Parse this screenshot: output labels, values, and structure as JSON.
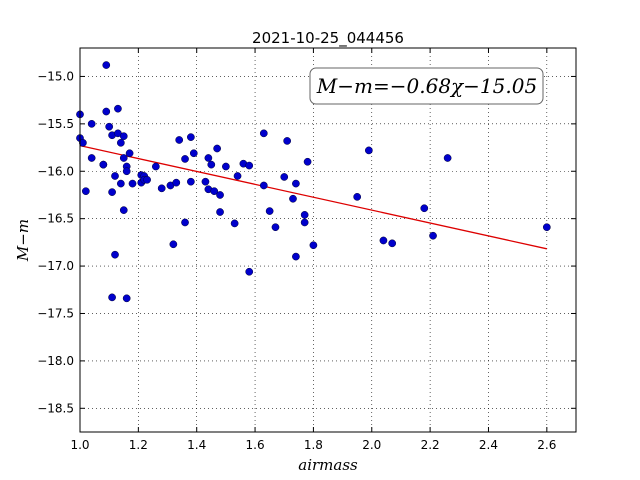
{
  "chart_data": {
    "type": "scatter",
    "title": "2021-10-25_044456",
    "xlabel": "airmass",
    "ylabel": "M−m",
    "xlim": [
      1.0,
      2.7
    ],
    "ylim": [
      -14.7,
      -18.75
    ],
    "y_inverted": true,
    "grid": true,
    "x_ticks": [
      "1.0",
      "1.2",
      "1.4",
      "1.6",
      "1.8",
      "2.0",
      "2.2",
      "2.4",
      "2.6"
    ],
    "y_ticks": [
      "−15.0",
      "−15.5",
      "−16.0",
      "−16.5",
      "−17.0",
      "−17.5",
      "−18.0",
      "−18.5"
    ],
    "annotation": "M−m=−0.68χ−15.05",
    "marker_color": "#0000cc",
    "fit_line_color": "#dd0000",
    "fit": {
      "slope": -0.68,
      "intercept": -15.05,
      "x_range": [
        1.0,
        2.6
      ]
    },
    "points": [
      [
        1.0,
        -15.4
      ],
      [
        1.0,
        -15.65
      ],
      [
        1.01,
        -15.7
      ],
      [
        1.02,
        -16.21
      ],
      [
        1.04,
        -15.5
      ],
      [
        1.04,
        -15.86
      ],
      [
        1.08,
        -15.93
      ],
      [
        1.08,
        -15.93
      ],
      [
        1.09,
        -15.37
      ],
      [
        1.09,
        -14.88
      ],
      [
        1.1,
        -15.53
      ],
      [
        1.11,
        -15.62
      ],
      [
        1.11,
        -16.22
      ],
      [
        1.11,
        -17.33
      ],
      [
        1.12,
        -16.05
      ],
      [
        1.12,
        -16.88
      ],
      [
        1.13,
        -15.34
      ],
      [
        1.13,
        -15.6
      ],
      [
        1.14,
        -15.7
      ],
      [
        1.14,
        -16.13
      ],
      [
        1.15,
        -16.41
      ],
      [
        1.15,
        -15.86
      ],
      [
        1.15,
        -15.63
      ],
      [
        1.16,
        -17.34
      ],
      [
        1.16,
        -15.95
      ],
      [
        1.16,
        -16.0
      ],
      [
        1.17,
        -15.81
      ],
      [
        1.18,
        -16.13
      ],
      [
        1.21,
        -16.12
      ],
      [
        1.21,
        -16.04
      ],
      [
        1.22,
        -16.05
      ],
      [
        1.22,
        -16.09
      ],
      [
        1.23,
        -16.09
      ],
      [
        1.26,
        -15.95
      ],
      [
        1.28,
        -16.18
      ],
      [
        1.31,
        -16.15
      ],
      [
        1.32,
        -16.77
      ],
      [
        1.33,
        -16.12
      ],
      [
        1.34,
        -15.67
      ],
      [
        1.36,
        -16.54
      ],
      [
        1.36,
        -15.87
      ],
      [
        1.38,
        -15.64
      ],
      [
        1.38,
        -16.11
      ],
      [
        1.39,
        -15.81
      ],
      [
        1.43,
        -16.11
      ],
      [
        1.44,
        -16.19
      ],
      [
        1.44,
        -15.86
      ],
      [
        1.45,
        -15.93
      ],
      [
        1.46,
        -16.21
      ],
      [
        1.47,
        -15.76
      ],
      [
        1.48,
        -16.25
      ],
      [
        1.48,
        -16.43
      ],
      [
        1.5,
        -15.95
      ],
      [
        1.53,
        -16.55
      ],
      [
        1.54,
        -16.05
      ],
      [
        1.56,
        -15.92
      ],
      [
        1.58,
        -15.94
      ],
      [
        1.58,
        -17.06
      ],
      [
        1.63,
        -15.6
      ],
      [
        1.63,
        -16.15
      ],
      [
        1.65,
        -16.42
      ],
      [
        1.67,
        -16.59
      ],
      [
        1.7,
        -16.06
      ],
      [
        1.71,
        -15.68
      ],
      [
        1.73,
        -16.29
      ],
      [
        1.74,
        -16.9
      ],
      [
        1.74,
        -16.13
      ],
      [
        1.77,
        -16.54
      ],
      [
        1.77,
        -16.46
      ],
      [
        1.78,
        -15.9
      ],
      [
        1.8,
        -16.78
      ],
      [
        1.95,
        -16.27
      ],
      [
        1.99,
        -15.78
      ],
      [
        2.04,
        -16.73
      ],
      [
        2.07,
        -16.76
      ],
      [
        2.18,
        -16.39
      ],
      [
        2.21,
        -16.68
      ],
      [
        2.26,
        -15.86
      ],
      [
        2.6,
        -16.59
      ]
    ]
  }
}
